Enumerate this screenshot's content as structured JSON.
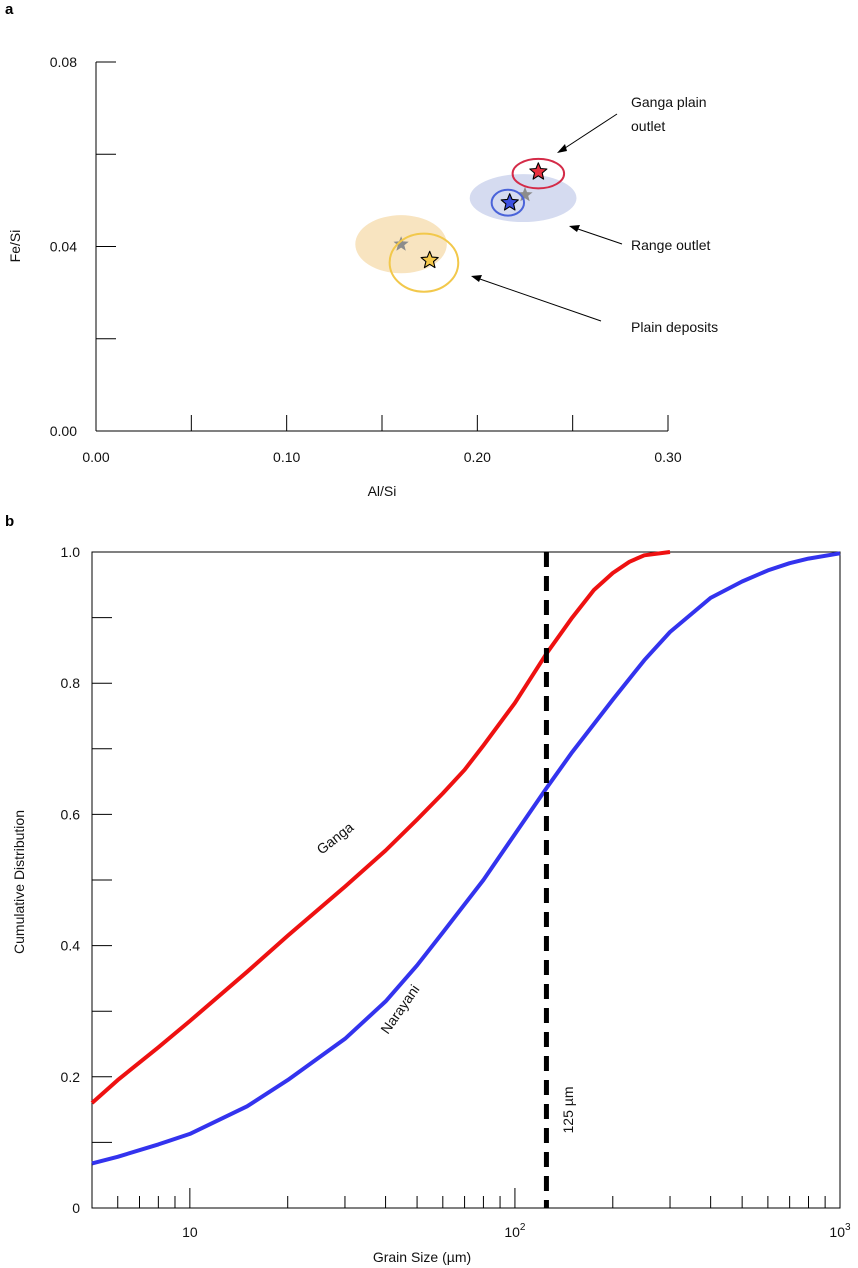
{
  "panel_a": {
    "letter": "a",
    "chart_data": {
      "type": "scatter",
      "xlabel": "Al/Si",
      "ylabel": "Fe/Si",
      "xlim": [
        0,
        0.3
      ],
      "ylim": [
        0,
        0.08
      ],
      "x_ticks_major": [
        0.0,
        0.1,
        0.2,
        0.3
      ],
      "x_tick_labels": [
        "0.00",
        "0.10",
        "0.20",
        "0.30"
      ],
      "x_ticks_minor": [
        0.05,
        0.15,
        0.25
      ],
      "y_ticks_major": [
        0.0,
        0.04,
        0.08
      ],
      "y_tick_labels": [
        "0.00",
        "0.04",
        "0.08"
      ],
      "y_ticks_minor": [
        0.02,
        0.06
      ],
      "groups": [
        {
          "id": "plain-deposits",
          "star": {
            "x": 0.175,
            "y": 0.037,
            "color": "#f7c948"
          },
          "ellipse": {
            "cx": 0.172,
            "cy": 0.0365,
            "rx": 0.018,
            "ry": 0.0063,
            "stroke": "#f2c84b"
          },
          "grey_star": {
            "x": 0.16,
            "y": 0.0405
          },
          "shaded": {
            "cx": 0.16,
            "cy": 0.0405,
            "rx": 0.024,
            "ry": 0.0063,
            "fill": "#f8e4c0"
          }
        },
        {
          "id": "range-outlet",
          "star": {
            "x": 0.217,
            "y": 0.0495,
            "color": "#3b4fe0"
          },
          "ellipse": {
            "cx": 0.216,
            "cy": 0.0495,
            "rx": 0.0085,
            "ry": 0.0028,
            "stroke": "#4a63d9"
          },
          "grey_star": {
            "x": 0.225,
            "y": 0.0512
          },
          "shaded": {
            "cx": 0.224,
            "cy": 0.0505,
            "rx": 0.028,
            "ry": 0.0052,
            "fill": "#d5dbf0"
          }
        },
        {
          "id": "ganga-plain-outlet",
          "star": {
            "x": 0.232,
            "y": 0.0562,
            "color": "#e8303f"
          },
          "ellipse": {
            "cx": 0.232,
            "cy": 0.0558,
            "rx": 0.0135,
            "ry": 0.0032,
            "stroke": "#d42b48"
          }
        }
      ],
      "annotations": [
        {
          "text": "Ganga plain",
          "text2": "outlet"
        },
        {
          "text": "Range outlet"
        },
        {
          "text": "Plain deposits"
        }
      ]
    }
  },
  "panel_b": {
    "letter": "b",
    "chart_data": {
      "type": "line",
      "xlabel": "Grain Size (µm)",
      "ylabel": "Cumulative Distribution",
      "x_scale": "log",
      "xlim": [
        5,
        1000
      ],
      "ylim": [
        0,
        1.0
      ],
      "x_tick_labels": [
        {
          "value": 10,
          "base": "10",
          "sup": ""
        },
        {
          "value": 100,
          "base": "10",
          "sup": "2"
        },
        {
          "value": 1000,
          "base": "10",
          "sup": "3"
        }
      ],
      "y_ticks_major": [
        0,
        0.2,
        0.4,
        0.6,
        0.8,
        1.0
      ],
      "y_tick_labels": [
        "0",
        "0.2",
        "0.4",
        "0.6",
        "0.8",
        "1.0"
      ],
      "y_ticks_minor": [
        0.1,
        0.3,
        0.5,
        0.7,
        0.9
      ],
      "series": [
        {
          "name": "Ganga",
          "color": "#ee1111",
          "x": [
            5,
            6,
            8,
            10,
            15,
            20,
            30,
            40,
            50,
            60,
            70,
            80,
            100,
            125,
            150,
            175,
            200,
            225,
            250,
            300
          ],
          "y": [
            0.16,
            0.195,
            0.245,
            0.285,
            0.36,
            0.415,
            0.49,
            0.545,
            0.592,
            0.632,
            0.668,
            0.705,
            0.77,
            0.845,
            0.9,
            0.942,
            0.968,
            0.985,
            0.995,
            1.0
          ]
        },
        {
          "name": "Narayani",
          "color": "#3333ee",
          "x": [
            5,
            6,
            8,
            10,
            15,
            20,
            30,
            40,
            50,
            60,
            80,
            100,
            125,
            150,
            200,
            250,
            300,
            400,
            500,
            600,
            700,
            800,
            1000
          ],
          "y": [
            0.068,
            0.078,
            0.097,
            0.113,
            0.155,
            0.195,
            0.258,
            0.315,
            0.37,
            0.42,
            0.5,
            0.57,
            0.64,
            0.695,
            0.775,
            0.835,
            0.878,
            0.93,
            0.955,
            0.972,
            0.983,
            0.99,
            0.998
          ]
        }
      ],
      "vertical_line": {
        "x": 125,
        "label": "125 µm",
        "style": "dashed",
        "color": "#000000"
      }
    }
  }
}
